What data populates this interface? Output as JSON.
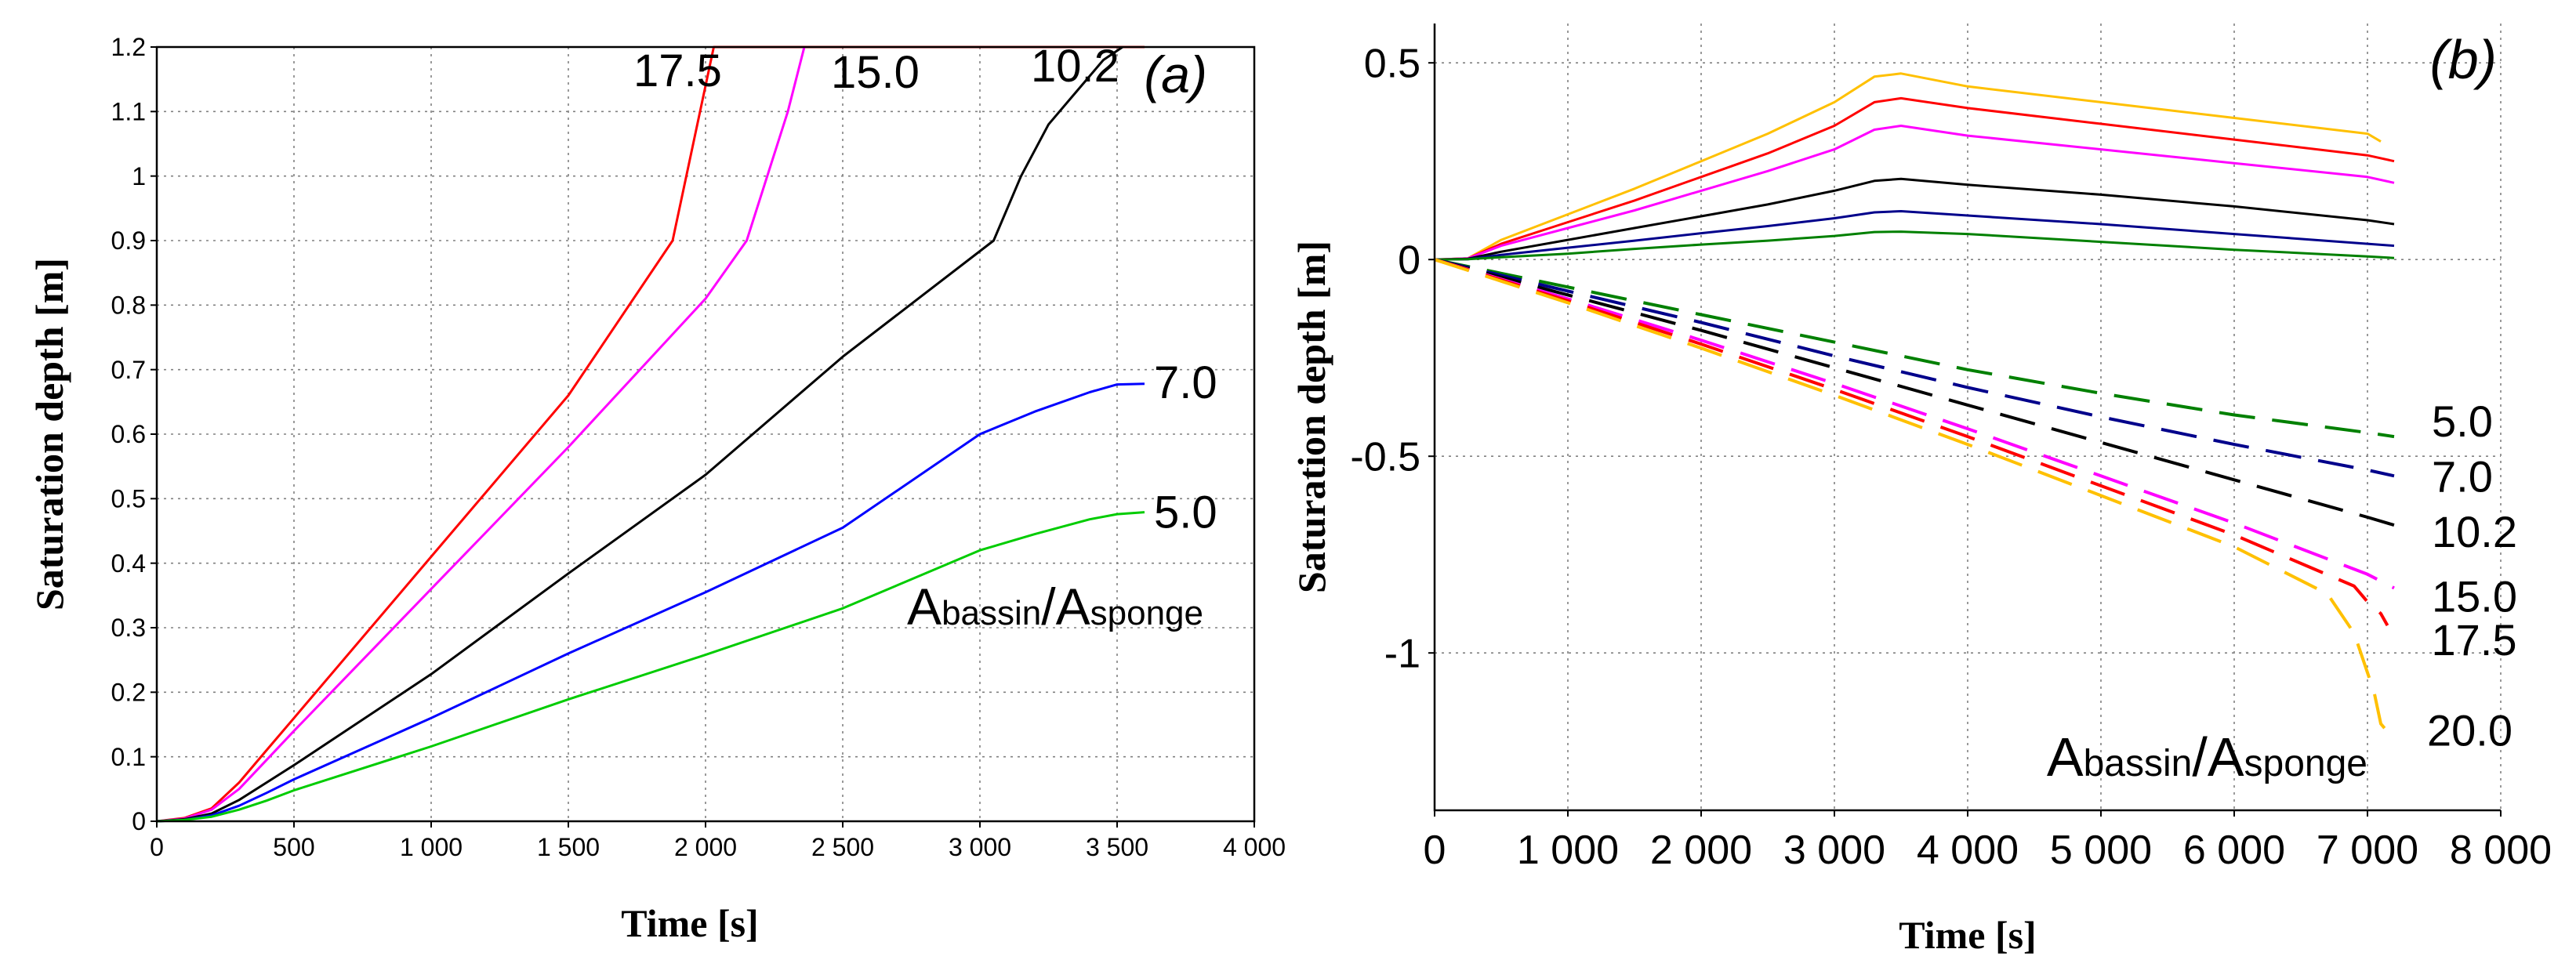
{
  "chart_data": [
    {
      "id": "a",
      "type": "line",
      "panel_label": "(a)",
      "xlabel": "Time [s]",
      "ylabel": "Saturation depth [m]",
      "xlim": [
        0,
        4000
      ],
      "ylim": [
        0,
        1.2
      ],
      "xticks": [
        0,
        500,
        1000,
        1500,
        2000,
        2500,
        3000,
        3500,
        4000
      ],
      "xtick_labels": [
        "0",
        "500",
        "1 000",
        "1 500",
        "2 000",
        "2 500",
        "3 000",
        "3 500",
        "4 000"
      ],
      "yticks": [
        0,
        0.1,
        0.2,
        0.3,
        0.4,
        0.5,
        0.6,
        0.7,
        0.8,
        0.9,
        1.0,
        1.1,
        1.2
      ],
      "ytick_labels": [
        "0",
        "0.1",
        "0.2",
        "0.3",
        "0.4",
        "0.5",
        "0.6",
        "0.7",
        "0.8",
        "0.9",
        "1",
        "1.1",
        "1.2"
      ],
      "grid": true,
      "legend_title": {
        "main1": "A",
        "sub1": "bassin",
        "sep": "/",
        "main2": "A",
        "sub2": "sponge"
      },
      "series": [
        {
          "label": "17.5",
          "color": "#ff0000",
          "dashed": false,
          "points": [
            [
              0,
              0
            ],
            [
              100,
              0.005
            ],
            [
              200,
              0.02
            ],
            [
              300,
              0.06
            ],
            [
              400,
              0.11
            ],
            [
              500,
              0.16
            ],
            [
              1000,
              0.41
            ],
            [
              1500,
              0.66
            ],
            [
              1880,
              0.9
            ],
            [
              2000,
              1.14
            ],
            [
              2030,
              1.2
            ],
            [
              3600,
              1.2
            ]
          ]
        },
        {
          "label": "15.0",
          "color": "#ff00ff",
          "dashed": false,
          "points": [
            [
              0,
              0
            ],
            [
              100,
              0.004
            ],
            [
              200,
              0.018
            ],
            [
              300,
              0.05
            ],
            [
              400,
              0.095
            ],
            [
              500,
              0.14
            ],
            [
              1000,
              0.36
            ],
            [
              1500,
              0.58
            ],
            [
              2000,
              0.81
            ],
            [
              2150,
              0.9
            ],
            [
              2300,
              1.1
            ],
            [
              2360,
              1.2
            ]
          ]
        },
        {
          "label": "10.2",
          "color": "#000000",
          "dashed": false,
          "points": [
            [
              0,
              0
            ],
            [
              100,
              0.003
            ],
            [
              200,
              0.012
            ],
            [
              300,
              0.033
            ],
            [
              400,
              0.06
            ],
            [
              500,
              0.087
            ],
            [
              1000,
              0.228
            ],
            [
              1500,
              0.384
            ],
            [
              2000,
              0.537
            ],
            [
              2500,
              0.72
            ],
            [
              3050,
              0.9
            ],
            [
              3150,
              1.0
            ],
            [
              3250,
              1.08
            ],
            [
              3350,
              1.13
            ],
            [
              3450,
              1.18
            ],
            [
              3520,
              1.2
            ]
          ]
        },
        {
          "label": "7.0",
          "color": "#0000ff",
          "dashed": false,
          "points": [
            [
              0,
              0
            ],
            [
              100,
              0.002
            ],
            [
              200,
              0.009
            ],
            [
              300,
              0.024
            ],
            [
              400,
              0.044
            ],
            [
              500,
              0.065
            ],
            [
              1000,
              0.16
            ],
            [
              1500,
              0.26
            ],
            [
              2000,
              0.355
            ],
            [
              2500,
              0.455
            ],
            [
              3000,
              0.6
            ],
            [
              3200,
              0.635
            ],
            [
              3400,
              0.665
            ],
            [
              3500,
              0.677
            ],
            [
              3600,
              0.678
            ]
          ]
        },
        {
          "label": "5.0",
          "color": "#00cc00",
          "dashed": false,
          "points": [
            [
              0,
              0
            ],
            [
              100,
              0.002
            ],
            [
              200,
              0.007
            ],
            [
              300,
              0.018
            ],
            [
              400,
              0.032
            ],
            [
              500,
              0.048
            ],
            [
              1000,
              0.116
            ],
            [
              1500,
              0.189
            ],
            [
              2000,
              0.258
            ],
            [
              2500,
              0.33
            ],
            [
              3000,
              0.42
            ],
            [
              3200,
              0.445
            ],
            [
              3400,
              0.468
            ],
            [
              3500,
              0.476
            ],
            [
              3600,
              0.479
            ]
          ]
        }
      ]
    },
    {
      "id": "b",
      "type": "line",
      "panel_label": "(b)",
      "xlabel": "Time [s]",
      "ylabel": "Saturation depth [m]",
      "xlim": [
        0,
        8000
      ],
      "ylim": [
        -1.4,
        0.6
      ],
      "xticks": [
        0,
        1000,
        2000,
        3000,
        4000,
        5000,
        6000,
        7000,
        8000
      ],
      "xtick_labels": [
        "0",
        "1 000",
        "2 000",
        "3 000",
        "4 000",
        "5 000",
        "6 000",
        "7 000",
        "8 000"
      ],
      "yticks": [
        0.5,
        0,
        -0.5,
        -1
      ],
      "ytick_labels": [
        "0.5",
        "0",
        "-0.5",
        "-1"
      ],
      "grid": true,
      "legend_title": {
        "main1": "A",
        "sub1": "bassin",
        "sep": "/",
        "main2": "A",
        "sub2": "sponge"
      },
      "series": [
        {
          "label": "",
          "color": "#ffc000",
          "dashed": false,
          "points": [
            [
              0,
              0
            ],
            [
              250,
              0.003
            ],
            [
              500,
              0.05
            ],
            [
              1000,
              0.115
            ],
            [
              1500,
              0.18
            ],
            [
              2000,
              0.25
            ],
            [
              2500,
              0.32
            ],
            [
              3000,
              0.4
            ],
            [
              3300,
              0.465
            ],
            [
              3500,
              0.473
            ],
            [
              4000,
              0.44
            ],
            [
              5000,
              0.4
            ],
            [
              6000,
              0.36
            ],
            [
              7000,
              0.32
            ],
            [
              7100,
              0.3
            ]
          ]
        },
        {
          "label": "",
          "color": "#ff0000",
          "dashed": false,
          "points": [
            [
              0,
              0
            ],
            [
              250,
              0.003
            ],
            [
              500,
              0.04
            ],
            [
              1000,
              0.095
            ],
            [
              1500,
              0.15
            ],
            [
              2000,
              0.21
            ],
            [
              2500,
              0.27
            ],
            [
              3000,
              0.34
            ],
            [
              3300,
              0.4
            ],
            [
              3500,
              0.41
            ],
            [
              4000,
              0.385
            ],
            [
              5000,
              0.345
            ],
            [
              6000,
              0.305
            ],
            [
              7000,
              0.265
            ],
            [
              7200,
              0.25
            ]
          ]
        },
        {
          "label": "",
          "color": "#ff00ff",
          "dashed": false,
          "points": [
            [
              0,
              0
            ],
            [
              250,
              0.003
            ],
            [
              500,
              0.035
            ],
            [
              1000,
              0.08
            ],
            [
              1500,
              0.125
            ],
            [
              2000,
              0.175
            ],
            [
              2500,
              0.225
            ],
            [
              3000,
              0.28
            ],
            [
              3300,
              0.33
            ],
            [
              3500,
              0.34
            ],
            [
              4000,
              0.315
            ],
            [
              5000,
              0.28
            ],
            [
              6000,
              0.245
            ],
            [
              7000,
              0.21
            ],
            [
              7200,
              0.195
            ]
          ]
        },
        {
          "label": "",
          "color": "#000000",
          "dashed": false,
          "points": [
            [
              0,
              0
            ],
            [
              250,
              0.002
            ],
            [
              500,
              0.02
            ],
            [
              1000,
              0.05
            ],
            [
              1500,
              0.08
            ],
            [
              2000,
              0.11
            ],
            [
              2500,
              0.14
            ],
            [
              3000,
              0.175
            ],
            [
              3300,
              0.2
            ],
            [
              3500,
              0.205
            ],
            [
              4000,
              0.19
            ],
            [
              5000,
              0.165
            ],
            [
              6000,
              0.135
            ],
            [
              7000,
              0.1
            ],
            [
              7200,
              0.09
            ]
          ]
        },
        {
          "label": "",
          "color": "#00008b",
          "dashed": false,
          "points": [
            [
              0,
              0
            ],
            [
              250,
              0.001
            ],
            [
              500,
              0.012
            ],
            [
              1000,
              0.03
            ],
            [
              1500,
              0.048
            ],
            [
              2000,
              0.067
            ],
            [
              2500,
              0.085
            ],
            [
              3000,
              0.105
            ],
            [
              3300,
              0.12
            ],
            [
              3500,
              0.123
            ],
            [
              4000,
              0.112
            ],
            [
              5000,
              0.09
            ],
            [
              6000,
              0.065
            ],
            [
              7000,
              0.04
            ],
            [
              7200,
              0.035
            ]
          ]
        },
        {
          "label": "",
          "color": "#008000",
          "dashed": false,
          "points": [
            [
              0,
              0
            ],
            [
              250,
              0.001
            ],
            [
              500,
              0.006
            ],
            [
              1000,
              0.015
            ],
            [
              1500,
              0.027
            ],
            [
              2000,
              0.038
            ],
            [
              2500,
              0.048
            ],
            [
              3000,
              0.06
            ],
            [
              3300,
              0.07
            ],
            [
              3500,
              0.071
            ],
            [
              4000,
              0.065
            ],
            [
              5000,
              0.045
            ],
            [
              6000,
              0.025
            ],
            [
              7000,
              0.008
            ],
            [
              7200,
              0.004
            ]
          ]
        },
        {
          "label": "5.0",
          "color": "#008000",
          "dashed": true,
          "points": [
            [
              0,
              0
            ],
            [
              500,
              -0.035
            ],
            [
              1000,
              -0.07
            ],
            [
              2000,
              -0.14
            ],
            [
              3000,
              -0.21
            ],
            [
              4000,
              -0.28
            ],
            [
              5000,
              -0.34
            ],
            [
              6000,
              -0.395
            ],
            [
              7000,
              -0.44
            ],
            [
              7200,
              -0.45
            ]
          ]
        },
        {
          "label": "7.0",
          "color": "#00008b",
          "dashed": true,
          "points": [
            [
              0,
              0
            ],
            [
              500,
              -0.04
            ],
            [
              1000,
              -0.08
            ],
            [
              2000,
              -0.16
            ],
            [
              3000,
              -0.245
            ],
            [
              4000,
              -0.325
            ],
            [
              5000,
              -0.4
            ],
            [
              6000,
              -0.47
            ],
            [
              7000,
              -0.535
            ],
            [
              7200,
              -0.55
            ]
          ]
        },
        {
          "label": "10.2",
          "color": "#000000",
          "dashed": true,
          "points": [
            [
              0,
              0
            ],
            [
              500,
              -0.045
            ],
            [
              1000,
              -0.09
            ],
            [
              2000,
              -0.18
            ],
            [
              3000,
              -0.275
            ],
            [
              4000,
              -0.37
            ],
            [
              5000,
              -0.465
            ],
            [
              6000,
              -0.56
            ],
            [
              7000,
              -0.655
            ],
            [
              7200,
              -0.675
            ]
          ]
        },
        {
          "label": "15.0",
          "color": "#ff00ff",
          "dashed": true,
          "points": [
            [
              0,
              0
            ],
            [
              500,
              -0.05
            ],
            [
              1000,
              -0.1
            ],
            [
              2000,
              -0.205
            ],
            [
              3000,
              -0.315
            ],
            [
              4000,
              -0.43
            ],
            [
              5000,
              -0.55
            ],
            [
              6000,
              -0.67
            ],
            [
              7000,
              -0.8
            ],
            [
              7200,
              -0.835
            ]
          ]
        },
        {
          "label": "17.5",
          "color": "#ff0000",
          "dashed": true,
          "points": [
            [
              0,
              0
            ],
            [
              500,
              -0.052
            ],
            [
              1000,
              -0.105
            ],
            [
              2000,
              -0.215
            ],
            [
              3000,
              -0.33
            ],
            [
              4000,
              -0.45
            ],
            [
              5000,
              -0.575
            ],
            [
              6000,
              -0.7
            ],
            [
              6900,
              -0.83
            ],
            [
              7000,
              -0.87
            ],
            [
              7100,
              -0.9
            ],
            [
              7150,
              -0.93
            ]
          ]
        },
        {
          "label": "20.0",
          "color": "#ffc000",
          "dashed": true,
          "points": [
            [
              0,
              0
            ],
            [
              500,
              -0.055
            ],
            [
              1000,
              -0.11
            ],
            [
              2000,
              -0.225
            ],
            [
              3000,
              -0.345
            ],
            [
              4000,
              -0.47
            ],
            [
              5000,
              -0.6
            ],
            [
              6000,
              -0.73
            ],
            [
              6700,
              -0.85
            ],
            [
              6900,
              -0.95
            ],
            [
              7000,
              -1.05
            ],
            [
              7050,
              -1.1
            ],
            [
              7100,
              -1.18
            ],
            [
              7200,
              -1.22
            ]
          ]
        }
      ]
    }
  ]
}
